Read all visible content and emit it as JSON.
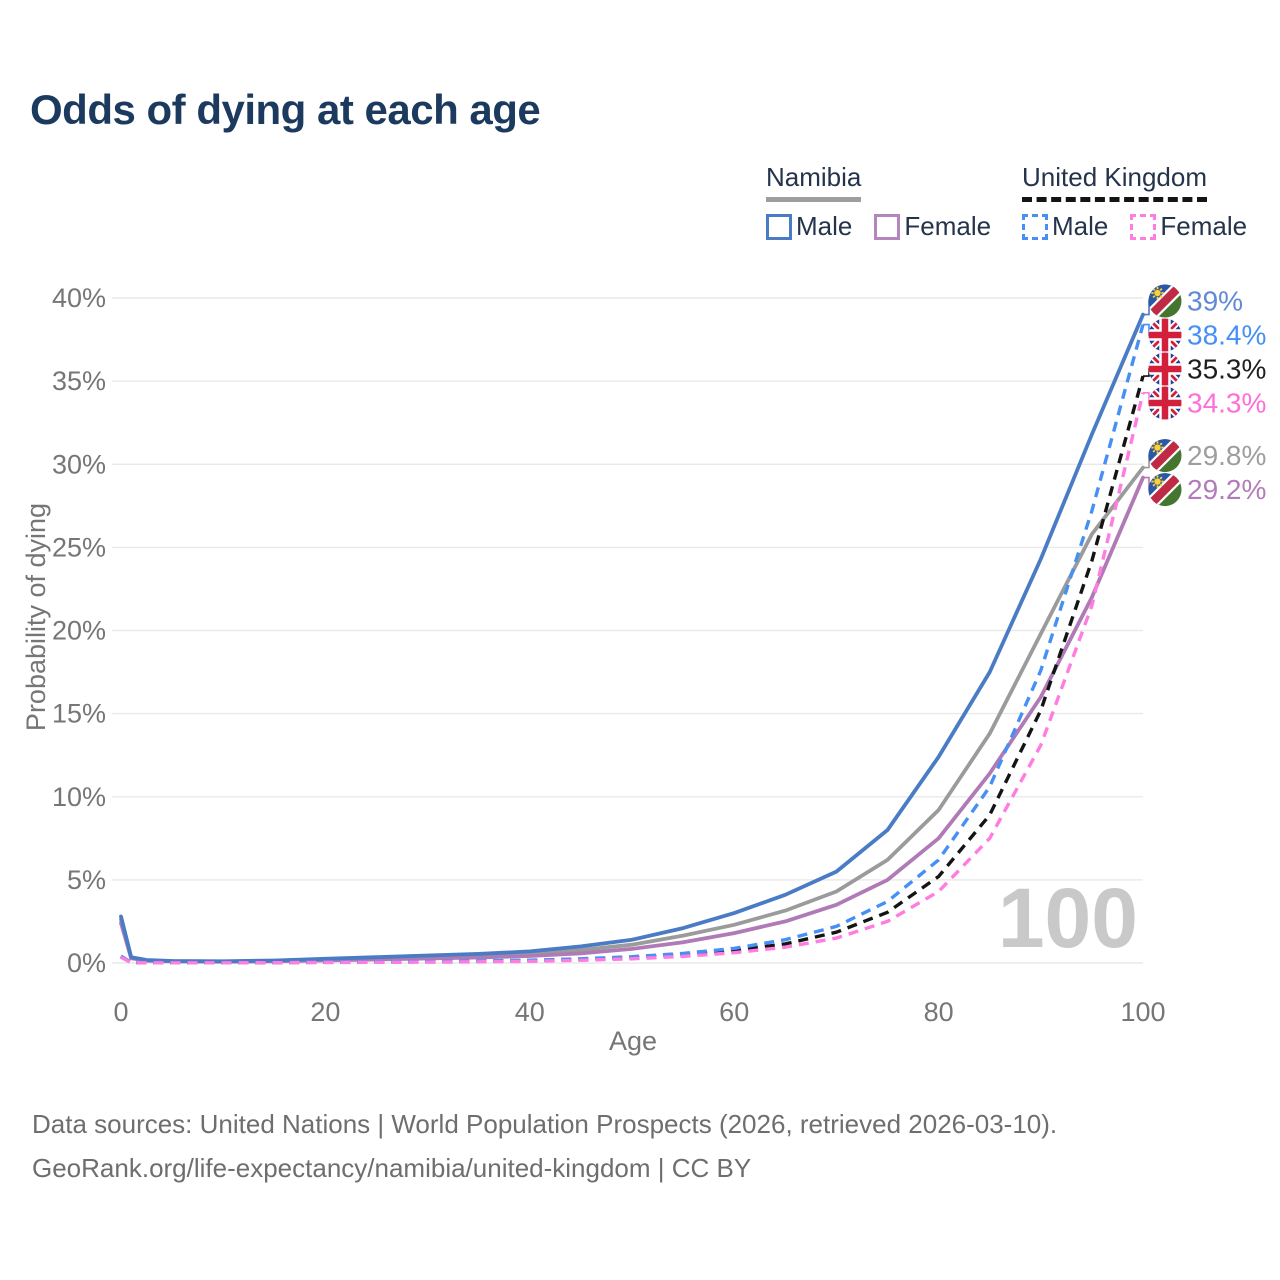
{
  "page": {
    "title": "Odds of dying at each age"
  },
  "legend": {
    "groups": [
      {
        "title": "Namibia",
        "line_style": "solid",
        "line_color": "#9e9e9e",
        "items": [
          {
            "label": "Male",
            "color": "#4a7bc5",
            "dash": "solid"
          },
          {
            "label": "Female",
            "color": "#b586bd",
            "dash": "solid"
          }
        ]
      },
      {
        "title": "United Kingdom",
        "line_style": "dashed",
        "line_color": "#141414",
        "items": [
          {
            "label": "Male",
            "color": "#4690f5",
            "dash": "dashed"
          },
          {
            "label": "Female",
            "color": "#ff7ce0",
            "dash": "dashed"
          }
        ]
      }
    ]
  },
  "footer": {
    "line1": "Data sources: United Nations | World Population Prospects (2026, retrieved 2026-03-10).",
    "line2": "GeoRank.org/life-expectancy/namibia/united-kingdom | CC BY"
  },
  "chart_data": {
    "type": "line",
    "title": "Odds of dying at each age",
    "xlabel": "Age",
    "ylabel": "Probability of dying",
    "x_unit": "years",
    "y_unit": "%",
    "xlim": [
      0,
      100
    ],
    "ylim": [
      0,
      40
    ],
    "x_ticks": [
      0,
      20,
      40,
      60,
      80,
      100
    ],
    "y_ticks_percent": [
      0,
      5,
      10,
      15,
      20,
      25,
      30,
      35,
      40
    ],
    "grid": "horizontal",
    "legend_position": "top-right",
    "watermark": "100",
    "x": [
      0,
      1,
      2.5,
      5,
      10,
      15,
      20,
      25,
      30,
      35,
      40,
      45,
      50,
      55,
      60,
      65,
      70,
      75,
      80,
      85,
      90,
      95,
      100
    ],
    "series": [
      {
        "name": "Namibia Both sexes",
        "country": "Namibia",
        "sex": "Both sexes",
        "color": "#9b9b9b",
        "label_color": "#9e9e9e",
        "dash": "solid",
        "flag": "namibia",
        "end_label": "29.8%",
        "end_value_percent": 29.8,
        "values": [
          2.6,
          0.3,
          0.16,
          0.11,
          0.09,
          0.12,
          0.2,
          0.27,
          0.34,
          0.42,
          0.55,
          0.78,
          1.1,
          1.65,
          2.3,
          3.15,
          4.3,
          6.2,
          9.2,
          13.8,
          19.8,
          25.8,
          29.8
        ]
      },
      {
        "name": "Namibia Female",
        "country": "Namibia",
        "sex": "Female",
        "color": "#b07ab6",
        "label_color": "#b27cba",
        "dash": "solid",
        "flag": "namibia",
        "end_label": "29.2%",
        "end_value_percent": 29.2,
        "values": [
          2.4,
          0.28,
          0.14,
          0.1,
          0.08,
          0.1,
          0.15,
          0.21,
          0.27,
          0.33,
          0.42,
          0.58,
          0.85,
          1.25,
          1.8,
          2.5,
          3.5,
          5.0,
          7.5,
          11.4,
          16.0,
          22.0,
          29.2
        ]
      },
      {
        "name": "Namibia Male",
        "country": "Namibia",
        "sex": "Male",
        "color": "#4a7bc5",
        "label_color": "#6189d8",
        "dash": "solid",
        "flag": "namibia",
        "end_label": "39%",
        "end_value_percent": 39.0,
        "values": [
          2.8,
          0.35,
          0.18,
          0.12,
          0.1,
          0.15,
          0.25,
          0.35,
          0.45,
          0.55,
          0.7,
          1.0,
          1.4,
          2.1,
          3.0,
          4.1,
          5.5,
          8.0,
          12.4,
          17.5,
          24.3,
          31.8,
          39.0
        ]
      },
      {
        "name": "United Kingdom Both sexes",
        "country": "United Kingdom",
        "sex": "Both sexes",
        "color": "#141414",
        "label_color": "#1f1f1f",
        "dash": "dashed",
        "flag": "uk",
        "end_label": "35.3%",
        "end_value_percent": 35.3,
        "values": [
          0.38,
          0.025,
          0.015,
          0.01,
          0.01,
          0.025,
          0.045,
          0.055,
          0.07,
          0.1,
          0.14,
          0.21,
          0.32,
          0.5,
          0.75,
          1.15,
          1.85,
          3.05,
          5.2,
          8.9,
          15.2,
          24.2,
          35.3
        ]
      },
      {
        "name": "United Kingdom Male",
        "country": "United Kingdom",
        "sex": "Male",
        "color": "#4690f5",
        "label_color": "#4690f5",
        "dash": "dashed",
        "flag": "uk",
        "end_label": "38.4%",
        "end_value_percent": 38.4,
        "values": [
          0.42,
          0.03,
          0.02,
          0.01,
          0.01,
          0.03,
          0.06,
          0.07,
          0.09,
          0.12,
          0.17,
          0.25,
          0.38,
          0.58,
          0.88,
          1.4,
          2.2,
          3.7,
          6.2,
          10.6,
          17.6,
          27.2,
          38.4
        ]
      },
      {
        "name": "United Kingdom Female",
        "country": "United Kingdom",
        "sex": "Female",
        "color": "#ff7ce0",
        "label_color": "#ff6fd8",
        "dash": "dashed",
        "flag": "uk",
        "end_label": "34.3%",
        "end_value_percent": 34.3,
        "values": [
          0.35,
          0.02,
          0.01,
          0.01,
          0.01,
          0.02,
          0.03,
          0.04,
          0.05,
          0.07,
          0.1,
          0.16,
          0.25,
          0.4,
          0.62,
          0.95,
          1.5,
          2.5,
          4.3,
          7.5,
          13.1,
          21.5,
          34.3
        ]
      }
    ]
  }
}
